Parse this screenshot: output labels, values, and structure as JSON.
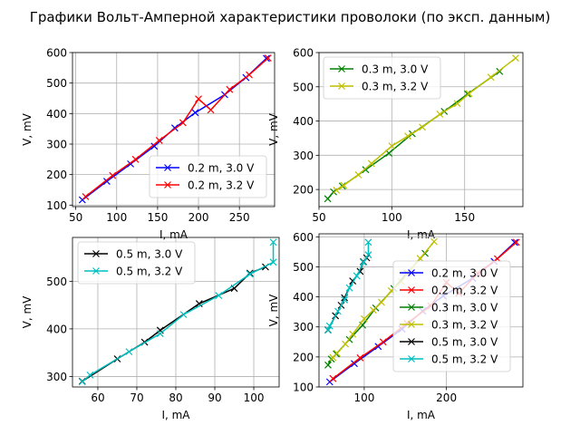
{
  "figure": {
    "title": "Графики Вольт-Амперной характеристики проволоки (по эксп. данным)"
  },
  "chart_data": [
    {
      "type": "line",
      "xlabel": "I, mA",
      "ylabel": "V, mV",
      "xlim": [
        46,
        293
      ],
      "ylim": [
        95,
        600
      ],
      "xticks": [
        50,
        100,
        150,
        200,
        250
      ],
      "yticks": [
        100,
        200,
        300,
        400,
        500,
        600
      ],
      "grid": true,
      "legend": "lower-right",
      "series": [
        {
          "name": "0.2 m, 3.0 V",
          "color": "#0000ff",
          "points": [
            [
              58,
              117
            ],
            [
              88,
              178
            ],
            [
              117,
              235
            ],
            [
              146,
              293
            ],
            [
              171,
              353
            ],
            [
              196,
              403
            ],
            [
              232,
              462
            ],
            [
              258,
              518
            ],
            [
              283,
              581
            ]
          ]
        },
        {
          "name": "0.2 m, 3.2 V",
          "color": "#ff0000",
          "points": [
            [
              62,
              128
            ],
            [
              95,
              197
            ],
            [
              123,
              250
            ],
            [
              152,
              312
            ],
            [
              181,
              370
            ],
            [
              200,
              448
            ],
            [
              215,
              412
            ],
            [
              238,
              479
            ],
            [
              262,
              527
            ],
            [
              285,
              582
            ]
          ]
        }
      ]
    },
    {
      "type": "line",
      "xlabel": "I, mA",
      "ylabel": "V, mV",
      "xlim": [
        50,
        190
      ],
      "ylim": [
        150,
        600
      ],
      "xticks": [
        50,
        100,
        150
      ],
      "yticks": [
        200,
        300,
        400,
        500,
        600
      ],
      "grid": true,
      "legend": "top-left",
      "series": [
        {
          "name": "0.3 m, 3.0 V",
          "color": "#008000",
          "points": [
            [
              56,
              173
            ],
            [
              60,
              193
            ],
            [
              66,
              210
            ],
            [
              82,
              258
            ],
            [
              98,
              306
            ],
            [
              114,
              363
            ],
            [
              136,
              428
            ],
            [
              152,
              479
            ],
            [
              174,
              545
            ]
          ]
        },
        {
          "name": "0.3 m, 3.2 V",
          "color": "#bfbf00",
          "points": [
            [
              62,
              198
            ],
            [
              67,
              212
            ],
            [
              77,
              243
            ],
            [
              86,
              276
            ],
            [
              100,
              327
            ],
            [
              111,
              356
            ],
            [
              121,
              382
            ],
            [
              133,
              420
            ],
            [
              145,
              451
            ],
            [
              153,
              480
            ],
            [
              168,
              528
            ],
            [
              185,
              584
            ]
          ]
        }
      ]
    },
    {
      "type": "line",
      "xlabel": "I, mA",
      "ylabel": "V, mV",
      "xlim": [
        53.5,
        106.5
      ],
      "ylim": [
        278,
        592
      ],
      "xticks": [
        60,
        70,
        80,
        90,
        100
      ],
      "yticks": [
        300,
        400,
        500
      ],
      "grid": true,
      "legend": "top-left",
      "series": [
        {
          "name": "0.5 m, 3.0 V",
          "color": "#000000",
          "points": [
            [
              56,
              290
            ],
            [
              65,
              337
            ],
            [
              72,
              372
            ],
            [
              76,
              397
            ],
            [
              86,
              453
            ],
            [
              95,
              485
            ],
            [
              99,
              517
            ],
            [
              103,
              530
            ]
          ]
        },
        {
          "name": "0.5 m, 3.2 V",
          "color": "#00bfbf",
          "points": [
            [
              56,
              289
            ],
            [
              58,
              303
            ],
            [
              68,
              352
            ],
            [
              76,
              390
            ],
            [
              82,
              430
            ],
            [
              91,
              470
            ],
            [
              99,
              515
            ],
            [
              105,
              540
            ],
            [
              105,
              582
            ]
          ]
        }
      ]
    },
    {
      "type": "line",
      "xlabel": "I, mA",
      "ylabel": "V, mV",
      "xlim": [
        45,
        293
      ],
      "ylim": [
        100,
        610
      ],
      "xticks": [
        100,
        200
      ],
      "yticks": [
        100,
        200,
        300,
        400,
        500,
        600
      ],
      "grid": true,
      "legend": "right",
      "series": [
        {
          "name": "0.2 m, 3.0 V",
          "color": "#0000ff",
          "points": [
            [
              58,
              117
            ],
            [
              88,
              178
            ],
            [
              117,
              235
            ],
            [
              146,
              293
            ],
            [
              171,
              353
            ],
            [
              196,
              403
            ],
            [
              232,
              462
            ],
            [
              258,
              518
            ],
            [
              283,
              581
            ]
          ]
        },
        {
          "name": "0.2 m, 3.2 V",
          "color": "#ff0000",
          "points": [
            [
              62,
              128
            ],
            [
              95,
              197
            ],
            [
              123,
              250
            ],
            [
              152,
              312
            ],
            [
              181,
              370
            ],
            [
              200,
              448
            ],
            [
              215,
              412
            ],
            [
              238,
              479
            ],
            [
              262,
              527
            ],
            [
              285,
              582
            ]
          ]
        },
        {
          "name": "0.3 m, 3.0 V",
          "color": "#008000",
          "points": [
            [
              56,
              173
            ],
            [
              60,
              193
            ],
            [
              66,
              210
            ],
            [
              82,
              258
            ],
            [
              98,
              306
            ],
            [
              114,
              363
            ],
            [
              136,
              428
            ],
            [
              152,
              479
            ],
            [
              174,
              545
            ]
          ]
        },
        {
          "name": "0.3 m, 3.2 V",
          "color": "#bfbf00",
          "points": [
            [
              62,
              198
            ],
            [
              67,
              212
            ],
            [
              77,
              243
            ],
            [
              86,
              276
            ],
            [
              100,
              327
            ],
            [
              111,
              356
            ],
            [
              121,
              382
            ],
            [
              133,
              420
            ],
            [
              145,
              451
            ],
            [
              153,
              480
            ],
            [
              168,
              528
            ],
            [
              185,
              584
            ]
          ]
        },
        {
          "name": "0.5 m, 3.0 V",
          "color": "#000000",
          "points": [
            [
              56,
              290
            ],
            [
              65,
              337
            ],
            [
              72,
              372
            ],
            [
              76,
              397
            ],
            [
              86,
              453
            ],
            [
              95,
              485
            ],
            [
              99,
              517
            ],
            [
              103,
              530
            ]
          ]
        },
        {
          "name": "0.5 m, 3.2 V",
          "color": "#00bfbf",
          "points": [
            [
              56,
              289
            ],
            [
              58,
              303
            ],
            [
              68,
              352
            ],
            [
              76,
              390
            ],
            [
              82,
              430
            ],
            [
              91,
              470
            ],
            [
              99,
              515
            ],
            [
              105,
              540
            ],
            [
              105,
              582
            ]
          ]
        }
      ]
    }
  ]
}
